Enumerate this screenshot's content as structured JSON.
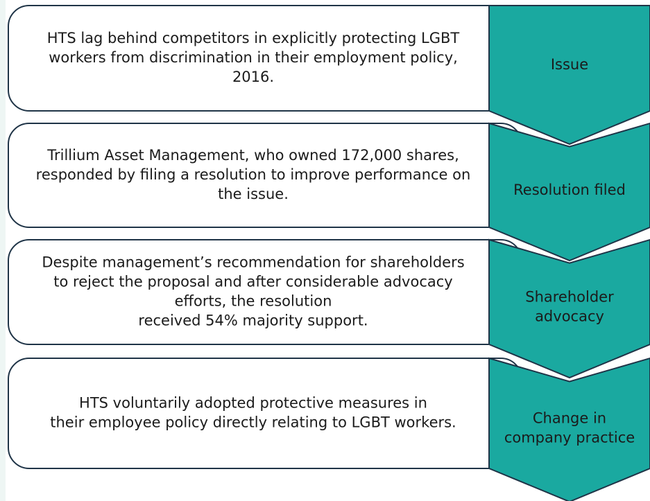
{
  "steps": [
    {
      "text": [
        "HTS lag behind competitors in explicitly protecting LGBT",
        "workers from discrimination in their employment policy,",
        "2016."
      ],
      "label": [
        "Issue"
      ]
    },
    {
      "text": [
        "Trillium Asset Management, who owned 172,000 shares,",
        "responded by filing a resolution to improve performance on",
        "the issue."
      ],
      "label": [
        "Resolution filed"
      ]
    },
    {
      "text": [
        "Despite management’s recommendation for shareholders",
        "to reject the proposal and after considerable advocacy",
        "efforts, the resolution",
        "received 54% majority support."
      ],
      "label": [
        "Shareholder",
        "advocacy"
      ]
    },
    {
      "text": [
        "HTS voluntarily adopted protective measures in",
        "their employee policy directly relating to LGBT workers."
      ],
      "label": [
        "Change in",
        "company practice"
      ]
    }
  ]
}
